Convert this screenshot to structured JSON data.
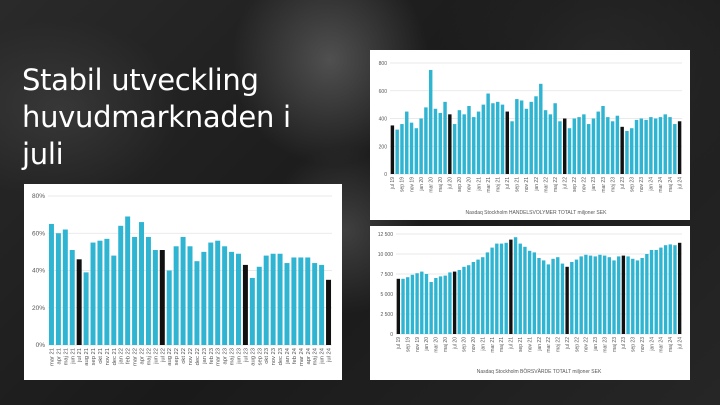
{
  "slide": {
    "title": "Stabil utveckling huvudmarknaden i juli"
  },
  "colors": {
    "bar": "#2fb5d2",
    "highlight": "#111111",
    "grid": "#e3e3e3",
    "axis_text": "#555555"
  },
  "chart_data": [
    {
      "id": "share",
      "type": "bar",
      "title": "",
      "xlabel": "",
      "ylabel": "",
      "ylim": [
        0,
        80
      ],
      "yticks": [
        "0%",
        "20%",
        "40%",
        "60%",
        "80%"
      ],
      "ytick_values": [
        0,
        20,
        40,
        60,
        80
      ],
      "categories": [
        "mar 21",
        "apr 21",
        "maj 21",
        "jun 21",
        "jul 21",
        "aug 21",
        "sep 21",
        "okt 21",
        "nov 21",
        "dec 21",
        "jan 22",
        "feb 22",
        "mar 22",
        "apr 22",
        "maj 22",
        "jun 22",
        "jul 22",
        "aug 22",
        "sep 22",
        "okt 22",
        "nov 22",
        "dec 22",
        "jan 23",
        "feb 23",
        "mar 23",
        "apr 23",
        "maj 23",
        "jun 23",
        "jul 23",
        "aug 23",
        "sep 23",
        "okt 23",
        "nov 23",
        "dec 23",
        "jan 24",
        "feb 24",
        "mar 24",
        "apr 24",
        "maj 24",
        "jun 24",
        "jul 24"
      ],
      "values": [
        65,
        60,
        62,
        51,
        46,
        39,
        55,
        56,
        57,
        48,
        64,
        69,
        58,
        66,
        58,
        51,
        51,
        40,
        53,
        58,
        53,
        45,
        50,
        55,
        56,
        53,
        50,
        49,
        43,
        36,
        42,
        48,
        49,
        49,
        44,
        47,
        47,
        47,
        44,
        43,
        35
      ],
      "highlight_categories": [
        "jul 21",
        "jul 22",
        "jul 23",
        "jul 24"
      ]
    },
    {
      "id": "trading_volume",
      "type": "bar",
      "title": "",
      "xlabel": "Nasdaq Stockholm HANDELSVOLYMER TOTALT miljoner SEK",
      "ylabel": "",
      "ylim": [
        0,
        800
      ],
      "yticks": [
        "0",
        "200",
        "400",
        "600",
        "800"
      ],
      "ytick_values": [
        0,
        200,
        400,
        600,
        800
      ],
      "categories": [
        "jul 19",
        "aug 19",
        "sep 19",
        "okt 19",
        "nov 19",
        "dec 19",
        "jan 20",
        "feb 20",
        "mar 20",
        "apr 20",
        "maj 20",
        "jun 20",
        "jul 20",
        "aug 20",
        "sep 20",
        "okt 20",
        "nov 20",
        "dec 20",
        "jan 21",
        "feb 21",
        "mar 21",
        "apr 21",
        "maj 21",
        "jun 21",
        "jul 21",
        "aug 21",
        "sep 21",
        "okt 21",
        "nov 21",
        "dec 21",
        "jan 22",
        "feb 22",
        "mar 22",
        "apr 22",
        "maj 22",
        "jun 22",
        "jul 22",
        "aug 22",
        "sep 22",
        "okt 22",
        "nov 22",
        "dec 22",
        "jan 23",
        "feb 23",
        "mar 23",
        "apr 23",
        "maj 23",
        "jun 23",
        "jul 23",
        "aug 23",
        "sep 23",
        "okt 23",
        "nov 23",
        "dec 23",
        "jan 24",
        "feb 24",
        "mar 24",
        "apr 24",
        "maj 24",
        "jun 24",
        "jul 24"
      ],
      "tick_labels": [
        "jul 19",
        "sep 19",
        "nov 19",
        "jan 20",
        "mar 20",
        "maj 20",
        "jul 20",
        "sep 20",
        "nov 20",
        "jan 21",
        "mar 21",
        "maj 21",
        "jul 21",
        "sep 21",
        "nov 21",
        "jan 22",
        "mar 22",
        "maj 22",
        "jul 22",
        "sep 22",
        "nov 22",
        "jan 23",
        "mar 23",
        "maj 23",
        "jul 23",
        "sep 23",
        "nov 23",
        "jan 24",
        "mar 24",
        "maj 24",
        "jul 24"
      ],
      "values": [
        350,
        320,
        360,
        450,
        370,
        330,
        400,
        480,
        750,
        470,
        440,
        520,
        430,
        360,
        460,
        430,
        490,
        410,
        450,
        500,
        580,
        510,
        520,
        500,
        450,
        380,
        540,
        530,
        470,
        520,
        560,
        650,
        460,
        430,
        510,
        380,
        400,
        330,
        400,
        410,
        430,
        360,
        400,
        450,
        490,
        410,
        380,
        420,
        340,
        310,
        330,
        390,
        400,
        390,
        410,
        400,
        410,
        430,
        410,
        360,
        380
      ],
      "highlight_categories": [
        "jul 19",
        "jul 20",
        "jul 21",
        "jul 22",
        "jul 23",
        "jul 24"
      ]
    },
    {
      "id": "market_value",
      "type": "bar",
      "title": "",
      "xlabel": "Nasdaq Stockholm BÖRSVÄRDE TOTALT miljoner SEK",
      "ylabel": "",
      "ylim": [
        0,
        12500
      ],
      "yticks": [
        "0",
        "2 500",
        "5 000",
        "7 500",
        "10 000",
        "12 500"
      ],
      "ytick_values": [
        0,
        2500,
        5000,
        7500,
        10000,
        12500
      ],
      "categories": [
        "jul 19",
        "aug 19",
        "sep 19",
        "okt 19",
        "nov 19",
        "dec 19",
        "jan 20",
        "feb 20",
        "mar 20",
        "apr 20",
        "maj 20",
        "jun 20",
        "jul 20",
        "aug 20",
        "sep 20",
        "okt 20",
        "nov 20",
        "dec 20",
        "jan 21",
        "feb 21",
        "mar 21",
        "apr 21",
        "maj 21",
        "jun 21",
        "jul 21",
        "aug 21",
        "sep 21",
        "okt 21",
        "nov 21",
        "dec 21",
        "jan 22",
        "feb 22",
        "mar 22",
        "apr 22",
        "maj 22",
        "jun 22",
        "jul 22",
        "aug 22",
        "sep 22",
        "okt 22",
        "nov 22",
        "dec 22",
        "jan 23",
        "feb 23",
        "mar 23",
        "apr 23",
        "maj 23",
        "jun 23",
        "jul 23",
        "aug 23",
        "sep 23",
        "okt 23",
        "nov 23",
        "dec 23",
        "jan 24",
        "feb 24",
        "mar 24",
        "apr 24",
        "maj 24",
        "jun 24",
        "jul 24"
      ],
      "tick_labels": [
        "jul 19",
        "sep 19",
        "nov 19",
        "jan 20",
        "mar 20",
        "maj 20",
        "jul 20",
        "sep 20",
        "nov 20",
        "jan 21",
        "mar 21",
        "maj 21",
        "jul 21",
        "sep 21",
        "nov 21",
        "jan 22",
        "mar 22",
        "maj 22",
        "jul 22",
        "sep 22",
        "nov 22",
        "jan 23",
        "mar 23",
        "maj 23",
        "jul 23",
        "sep 23",
        "nov 23",
        "jan 24",
        "mar 24",
        "maj 24",
        "jul 24"
      ],
      "values": [
        6900,
        6900,
        7100,
        7400,
        7600,
        7800,
        7500,
        6500,
        7000,
        7200,
        7300,
        7700,
        7800,
        8000,
        8400,
        8600,
        9000,
        9300,
        9600,
        10200,
        10800,
        11300,
        11300,
        11400,
        11800,
        12100,
        11300,
        10900,
        10400,
        10200,
        9500,
        9200,
        8700,
        9400,
        9600,
        8800,
        8400,
        9000,
        9300,
        9700,
        9900,
        9800,
        9700,
        9900,
        9800,
        9600,
        9200,
        9700,
        9800,
        9700,
        9400,
        9200,
        9500,
        10000,
        10500,
        10500,
        10800,
        11100,
        11200,
        11100,
        11400
      ],
      "highlight_categories": [
        "jul 19",
        "jul 20",
        "jul 21",
        "jul 22",
        "jul 23",
        "jul 24"
      ]
    }
  ]
}
